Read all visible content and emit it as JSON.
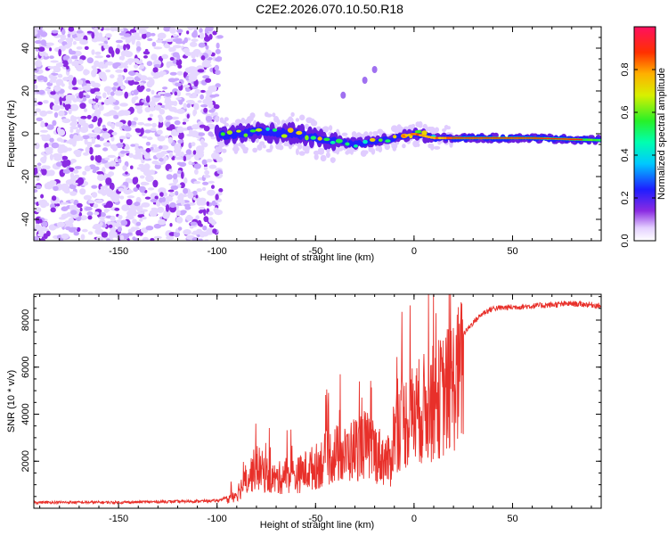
{
  "title": "C2E2.2026.070.10.50.R18",
  "chart_data": [
    {
      "type": "heatmap",
      "title": "C2E2.2026.070.10.50.R18",
      "xlabel": "Height of straight line (km)",
      "ylabel": "Frequency (Hz)",
      "xlim": [
        -193,
        95
      ],
      "ylim": [
        -50,
        50
      ],
      "xticks": [
        -150,
        -100,
        -50,
        0,
        50
      ],
      "yticks": [
        -40,
        -20,
        0,
        20,
        40
      ],
      "colorbar": {
        "label": "Normalized spectral amplitude",
        "range": [
          0,
          1
        ],
        "ticks": [
          "0.0",
          "0.2",
          "0.4",
          "0.6",
          "0.8"
        ]
      },
      "features": [
        {
          "name": "noise-region",
          "x_range": [
            -193,
            -98
          ],
          "y_range": [
            -50,
            50
          ],
          "amplitude": 0.1
        },
        {
          "name": "signal-band",
          "x_range": [
            -100,
            95
          ],
          "center_freq_hz": [
            [
              -100,
              -1
            ],
            [
              -80,
              1
            ],
            [
              -60,
              0
            ],
            [
              -45,
              -3
            ],
            [
              -30,
              -5
            ],
            [
              -15,
              -3
            ],
            [
              0,
              0
            ],
            [
              10,
              -2
            ],
            [
              30,
              -2
            ],
            [
              60,
              -2
            ],
            [
              95,
              -3
            ]
          ]
        },
        {
          "name": "harmonic-blip",
          "x": -25,
          "y": 25
        },
        {
          "name": "harmonic-blip",
          "x": -20,
          "y": 30
        },
        {
          "name": "harmonic-blip",
          "x": -36,
          "y": 18
        }
      ]
    },
    {
      "type": "line",
      "xlabel": "Height of straight line (km)",
      "ylabel": "SNR (10 * v/v)",
      "xlim": [
        -193,
        95
      ],
      "ylim": [
        0,
        9100
      ],
      "xticks": [
        -150,
        -100,
        -50,
        0,
        50
      ],
      "yticks": [
        2000,
        4000,
        6000,
        8000
      ],
      "series": [
        {
          "name": "SNR",
          "color": "#e8302a",
          "x": [
            -193,
            -150,
            -110,
            -100,
            -95,
            -90,
            -85,
            -80,
            -75,
            -70,
            -65,
            -60,
            -55,
            -50,
            -45,
            -40,
            -35,
            -30,
            -25,
            -20,
            -15,
            -12,
            -10,
            -5,
            0,
            5,
            10,
            15,
            20,
            25,
            30,
            35,
            40,
            50,
            60,
            70,
            80,
            90,
            95
          ],
          "values": [
            250,
            250,
            300,
            320,
            450,
            800,
            1500,
            2200,
            1800,
            1500,
            1800,
            1700,
            2000,
            2200,
            2600,
            2900,
            2800,
            3200,
            3400,
            3000,
            2600,
            2400,
            4200,
            4600,
            5000,
            5300,
            5600,
            6000,
            6600,
            7400,
            7900,
            8300,
            8500,
            8550,
            8600,
            8650,
            8700,
            8650,
            8600
          ]
        }
      ]
    }
  ]
}
